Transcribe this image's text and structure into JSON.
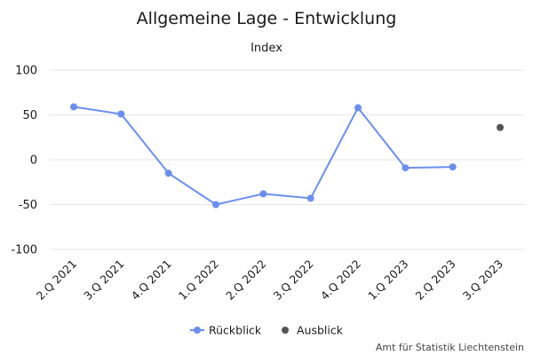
{
  "chart_data": {
    "type": "line",
    "title": "Allgemeine Lage - Entwicklung",
    "subtitle": "Index",
    "categories": [
      "2.Q 2021",
      "3.Q 2021",
      "4.Q 2021",
      "1.Q 2022",
      "2.Q 2022",
      "3.Q 2022",
      "4.Q 2022",
      "1.Q 2023",
      "2.Q 2023",
      "3.Q 2023"
    ],
    "ylim": [
      -100,
      100
    ],
    "yticks": [
      100,
      50,
      0,
      -50,
      -100
    ],
    "ytick_labels": [
      "100",
      "50",
      "0",
      "-50",
      "-100"
    ],
    "grid": true,
    "legend_position": "bottom-center",
    "series": [
      {
        "name": "Rückblick",
        "color": "#6a8ff0",
        "style": "line-with-markers",
        "values": [
          59,
          51,
          -15,
          -50,
          -38,
          -43,
          58,
          -9,
          -8,
          null
        ]
      },
      {
        "name": "Ausblick",
        "color": "#555555",
        "style": "markers",
        "values": [
          null,
          null,
          null,
          null,
          null,
          null,
          null,
          null,
          null,
          36
        ]
      }
    ]
  },
  "credit": "Amt für Statistik Liechtenstein"
}
